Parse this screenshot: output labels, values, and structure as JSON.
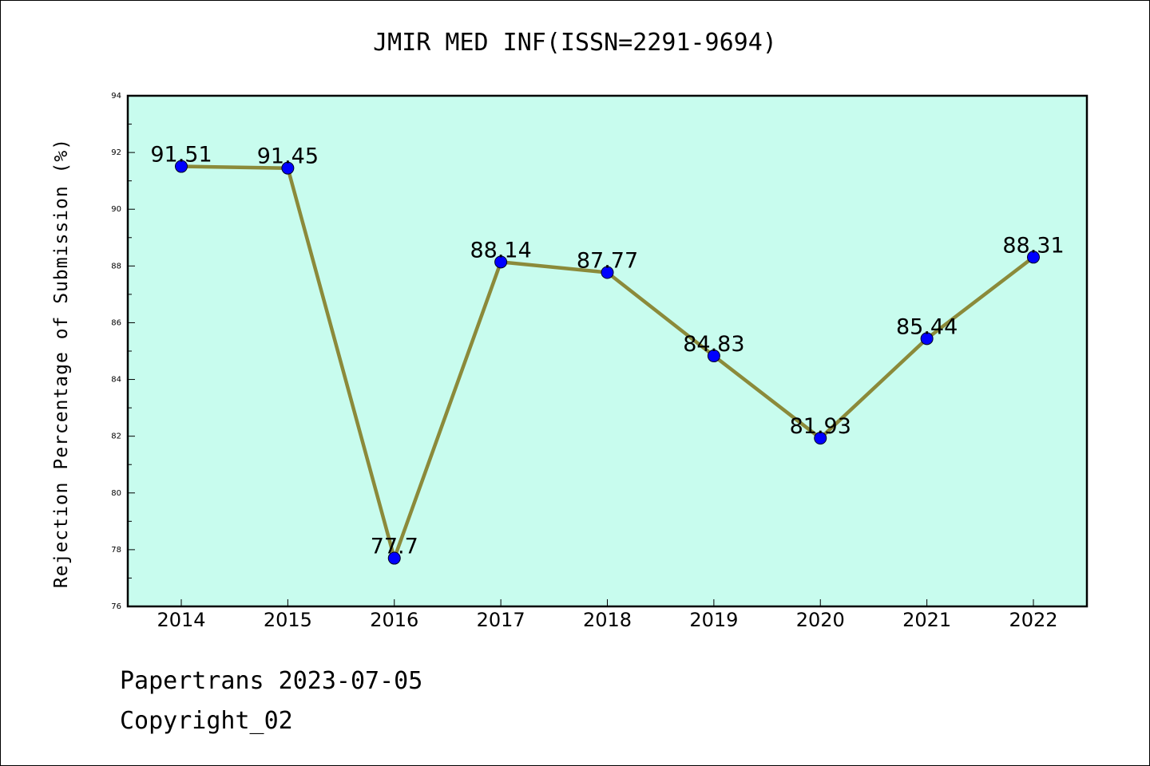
{
  "chart_data": {
    "type": "line",
    "title": "JMIR MED INF(ISSN=2291-9694)",
    "ylabel": "Rejection Percentage of Submission (%)",
    "xlabel": "",
    "categories": [
      "2014",
      "2015",
      "2016",
      "2017",
      "2018",
      "2019",
      "2020",
      "2021",
      "2022"
    ],
    "values": [
      91.51,
      91.45,
      77.7,
      88.14,
      87.77,
      84.83,
      81.93,
      85.44,
      88.31
    ],
    "data_labels": [
      "91.51",
      "91.45",
      "77.7",
      "88.14",
      "87.77",
      "84.83",
      "81.93",
      "85.44",
      "88.31"
    ],
    "ylim": [
      76,
      94
    ],
    "yticks": [
      76,
      78,
      80,
      82,
      84,
      86,
      88,
      90,
      92,
      94
    ],
    "grid": false,
    "colors": {
      "plot_background": "#c8fcee",
      "line": "#8b8a3a",
      "marker": "#0000ff"
    }
  },
  "footer": {
    "line1": "Papertrans 2023-07-05",
    "line2": "Copyright_02"
  }
}
